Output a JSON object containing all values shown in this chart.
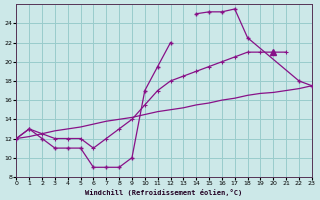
{
  "bg_color": "#cce8e8",
  "grid_color": "#99cccc",
  "line_color": "#881188",
  "xlabel": "Windchill (Refroidissement éolien,°C)",
  "xlim": [
    0,
    23
  ],
  "ylim": [
    8,
    26
  ],
  "xticks": [
    0,
    1,
    2,
    3,
    4,
    5,
    6,
    7,
    8,
    9,
    10,
    11,
    12,
    13,
    14,
    15,
    16,
    17,
    18,
    19,
    20,
    21,
    22,
    23
  ],
  "yticks": [
    8,
    10,
    12,
    14,
    16,
    18,
    20,
    22,
    24
  ],
  "curve_upper_x": [
    0,
    1,
    2,
    3,
    4,
    5,
    6,
    7,
    8,
    9,
    10,
    11,
    12,
    13,
    14,
    15,
    16,
    17,
    18,
    22,
    23
  ],
  "curve_upper_y": [
    12,
    13,
    12,
    11,
    11,
    11,
    9,
    9,
    9,
    10,
    17,
    19.5,
    22,
    null,
    25,
    25.2,
    25.2,
    25.5,
    22.5,
    18,
    17.5
  ],
  "curve_mid_x": [
    0,
    1,
    2,
    3,
    4,
    5,
    6,
    7,
    8,
    9,
    10,
    11,
    12,
    13,
    14,
    15,
    16,
    17,
    18,
    19,
    20,
    21,
    22,
    23
  ],
  "curve_mid_y": [
    12,
    13,
    12.5,
    12,
    12,
    12,
    11,
    12,
    13,
    14,
    15.5,
    17,
    18,
    18.5,
    19,
    19.5,
    20,
    20.5,
    21,
    21,
    21,
    21,
    null,
    17.5
  ],
  "curve_low_x": [
    0,
    1,
    2,
    3,
    4,
    5,
    6,
    7,
    8,
    9,
    10,
    11,
    12,
    13,
    14,
    15,
    16,
    17,
    18,
    19,
    20,
    21,
    22,
    23
  ],
  "curve_low_y": [
    12,
    12.2,
    12.5,
    12.8,
    13,
    13.2,
    13.5,
    13.8,
    14,
    14.2,
    14.5,
    14.8,
    15,
    15.2,
    15.5,
    15.7,
    16,
    16.2,
    16.5,
    16.7,
    16.8,
    17,
    17.2,
    17.5
  ]
}
